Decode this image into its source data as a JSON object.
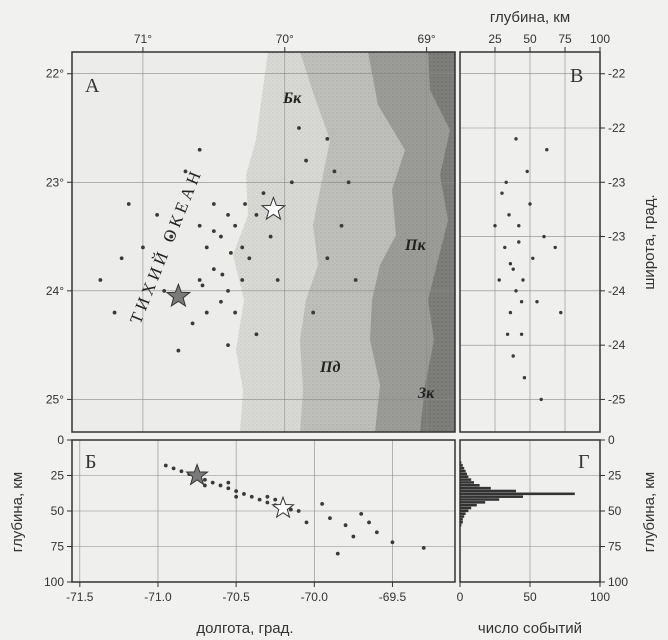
{
  "chart_data": [
    {
      "type": "scatter",
      "panel": "А",
      "panel_label": "А",
      "xlabel_top_ticks": [
        "71°",
        "70°",
        "69°"
      ],
      "x_ticks": [
        71,
        70,
        69
      ],
      "y_ticks": [
        22,
        23,
        24,
        25
      ],
      "y_tick_labels": [
        "22°",
        "23°",
        "24°",
        "25°"
      ],
      "xlim": [
        71.5,
        68.8
      ],
      "ylim": [
        21.8,
        25.3
      ],
      "annotations": [
        "ТИХИЙ ОКЕАН",
        "Бк",
        "Пк",
        "Пд",
        "Зк"
      ],
      "ocean_label": "ТИХИЙ ОКЕАН",
      "zone_labels": [
        "Бк",
        "Пк",
        "Пд",
        "Зк"
      ],
      "stars": [
        {
          "name": "gray-star",
          "x": 70.75,
          "y": 24.05,
          "color": "#7a7a7a"
        },
        {
          "name": "white-star",
          "x": 70.08,
          "y": 23.25,
          "color": "#ffffff"
        }
      ],
      "series": [
        {
          "values": [
            [
              70.5,
              23.2
            ],
            [
              70.4,
              23.3
            ],
            [
              70.45,
              23.5
            ],
            [
              70.55,
              23.6
            ],
            [
              70.35,
              23.4
            ],
            [
              70.3,
              23.6
            ],
            [
              70.5,
              23.8
            ],
            [
              70.4,
              24.0
            ],
            [
              70.3,
              23.9
            ],
            [
              70.6,
              23.4
            ],
            [
              70.2,
              23.3
            ],
            [
              70.25,
              23.7
            ],
            [
              70.45,
              24.1
            ],
            [
              70.55,
              24.2
            ],
            [
              70.6,
              23.9
            ],
            [
              70.35,
              24.2
            ],
            [
              70.8,
              23.5
            ],
            [
              70.9,
              23.3
            ],
            [
              71.0,
              23.6
            ],
            [
              70.85,
              24.0
            ],
            [
              71.1,
              23.2
            ],
            [
              70.7,
              22.9
            ],
            [
              70.15,
              23.1
            ],
            [
              70.1,
              23.5
            ],
            [
              69.95,
              23.0
            ],
            [
              69.85,
              22.8
            ],
            [
              69.7,
              22.6
            ],
            [
              69.55,
              23.0
            ],
            [
              69.6,
              23.4
            ],
            [
              69.7,
              23.7
            ],
            [
              69.8,
              24.2
            ],
            [
              69.5,
              23.9
            ],
            [
              70.2,
              24.4
            ],
            [
              70.4,
              24.5
            ],
            [
              70.65,
              24.3
            ],
            [
              70.75,
              24.55
            ],
            [
              71.2,
              24.2
            ],
            [
              71.3,
              23.9
            ],
            [
              71.15,
              23.7
            ],
            [
              70.6,
              22.7
            ],
            [
              69.9,
              22.5
            ],
            [
              69.65,
              22.9
            ],
            [
              70.05,
              23.9
            ],
            [
              70.5,
              23.45
            ],
            [
              70.38,
              23.65
            ],
            [
              70.28,
              23.2
            ],
            [
              70.58,
              23.95
            ],
            [
              70.44,
              23.85
            ]
          ]
        }
      ]
    },
    {
      "type": "scatter",
      "panel": "Б",
      "panel_label": "Б",
      "xlabel": "долгота, град.",
      "ylabel": "глубина, км",
      "x_ticks": [
        -71.5,
        -71.0,
        -70.5,
        -70.0,
        -69.5
      ],
      "x_tick_labels": [
        "-71.5",
        "-71.0",
        "-70.5",
        "-70.0",
        "-69.5"
      ],
      "y_ticks": [
        0,
        25,
        50,
        75,
        100
      ],
      "xlim": [
        -71.55,
        -69.1
      ],
      "ylim": [
        100,
        0
      ],
      "stars": [
        {
          "name": "gray-star",
          "x": -70.75,
          "y": 25,
          "color": "#7a7a7a"
        },
        {
          "name": "white-star",
          "x": -70.2,
          "y": 48,
          "color": "#ffffff"
        }
      ],
      "series": [
        {
          "values": [
            [
              -70.9,
              20
            ],
            [
              -70.85,
              22
            ],
            [
              -70.8,
              24
            ],
            [
              -70.75,
              26
            ],
            [
              -70.7,
              28
            ],
            [
              -70.65,
              30
            ],
            [
              -70.6,
              32
            ],
            [
              -70.55,
              34
            ],
            [
              -70.5,
              36
            ],
            [
              -70.45,
              38
            ],
            [
              -70.4,
              40
            ],
            [
              -70.35,
              42
            ],
            [
              -70.3,
              44
            ],
            [
              -70.25,
              46
            ],
            [
              -70.2,
              47
            ],
            [
              -70.15,
              49
            ],
            [
              -70.1,
              50
            ],
            [
              -70.95,
              18
            ],
            [
              -70.7,
              32
            ],
            [
              -70.5,
              40
            ],
            [
              -70.3,
              40
            ],
            [
              -70.25,
              42
            ],
            [
              -70.55,
              30
            ],
            [
              -69.9,
              55
            ],
            [
              -69.8,
              60
            ],
            [
              -69.7,
              52
            ],
            [
              -69.6,
              65
            ],
            [
              -69.5,
              72
            ],
            [
              -69.3,
              76
            ],
            [
              -69.85,
              80
            ],
            [
              -69.75,
              68
            ],
            [
              -70.05,
              58
            ],
            [
              -69.95,
              45
            ],
            [
              -69.65,
              58
            ]
          ]
        }
      ]
    },
    {
      "type": "scatter",
      "panel": "В",
      "panel_label": "В",
      "xlabel": "глубина, км",
      "ylabel": "широта, град.",
      "x_ticks": [
        25,
        50,
        75,
        100
      ],
      "y_ticks": [
        -22,
        -22.5,
        -23,
        -23.5,
        -24,
        -24.5,
        -25
      ],
      "y_tick_labels": [
        "-22",
        "-22",
        "-23",
        "-23",
        "-24",
        "-24",
        "-25"
      ],
      "xlim": [
        0,
        100
      ],
      "ylim": [
        -21.8,
        -25.3
      ],
      "series": [
        {
          "values": [
            [
              30,
              -23.1
            ],
            [
              35,
              -23.3
            ],
            [
              32,
              -23.6
            ],
            [
              38,
              -23.8
            ],
            [
              40,
              -24.0
            ],
            [
              36,
              -24.2
            ],
            [
              42,
              -23.4
            ],
            [
              45,
              -23.9
            ],
            [
              33,
              -23.0
            ],
            [
              48,
              -22.9
            ],
            [
              50,
              -23.2
            ],
            [
              44,
              -24.4
            ],
            [
              38,
              -24.6
            ],
            [
              52,
              -23.7
            ],
            [
              28,
              -23.9
            ],
            [
              34,
              -24.4
            ],
            [
              46,
              -24.8
            ],
            [
              55,
              -24.1
            ],
            [
              60,
              -23.5
            ],
            [
              62,
              -22.7
            ],
            [
              68,
              -23.6
            ],
            [
              72,
              -24.2
            ],
            [
              58,
              -25.0
            ],
            [
              25,
              -23.4
            ],
            [
              40,
              -22.6
            ],
            [
              42,
              -23.55
            ],
            [
              36,
              -23.75
            ],
            [
              44,
              -24.1
            ]
          ]
        }
      ]
    },
    {
      "type": "bar",
      "panel": "Г",
      "panel_label": "Г",
      "xlabel": "число событий",
      "ylabel": "глубина, км",
      "x_ticks": [
        0,
        50,
        100
      ],
      "y_ticks": [
        0,
        25,
        50,
        75,
        100
      ],
      "xlim": [
        0,
        100
      ],
      "ylim": [
        100,
        0
      ],
      "categories": [
        16,
        18,
        20,
        22,
        24,
        26,
        28,
        30,
        32,
        34,
        36,
        38,
        40,
        42,
        44,
        46,
        48,
        50,
        52,
        54,
        56,
        58,
        60
      ],
      "values": [
        1,
        2,
        3,
        4,
        5,
        6,
        8,
        10,
        14,
        22,
        40,
        82,
        45,
        28,
        18,
        12,
        8,
        6,
        4,
        3,
        2,
        2,
        1
      ]
    }
  ]
}
